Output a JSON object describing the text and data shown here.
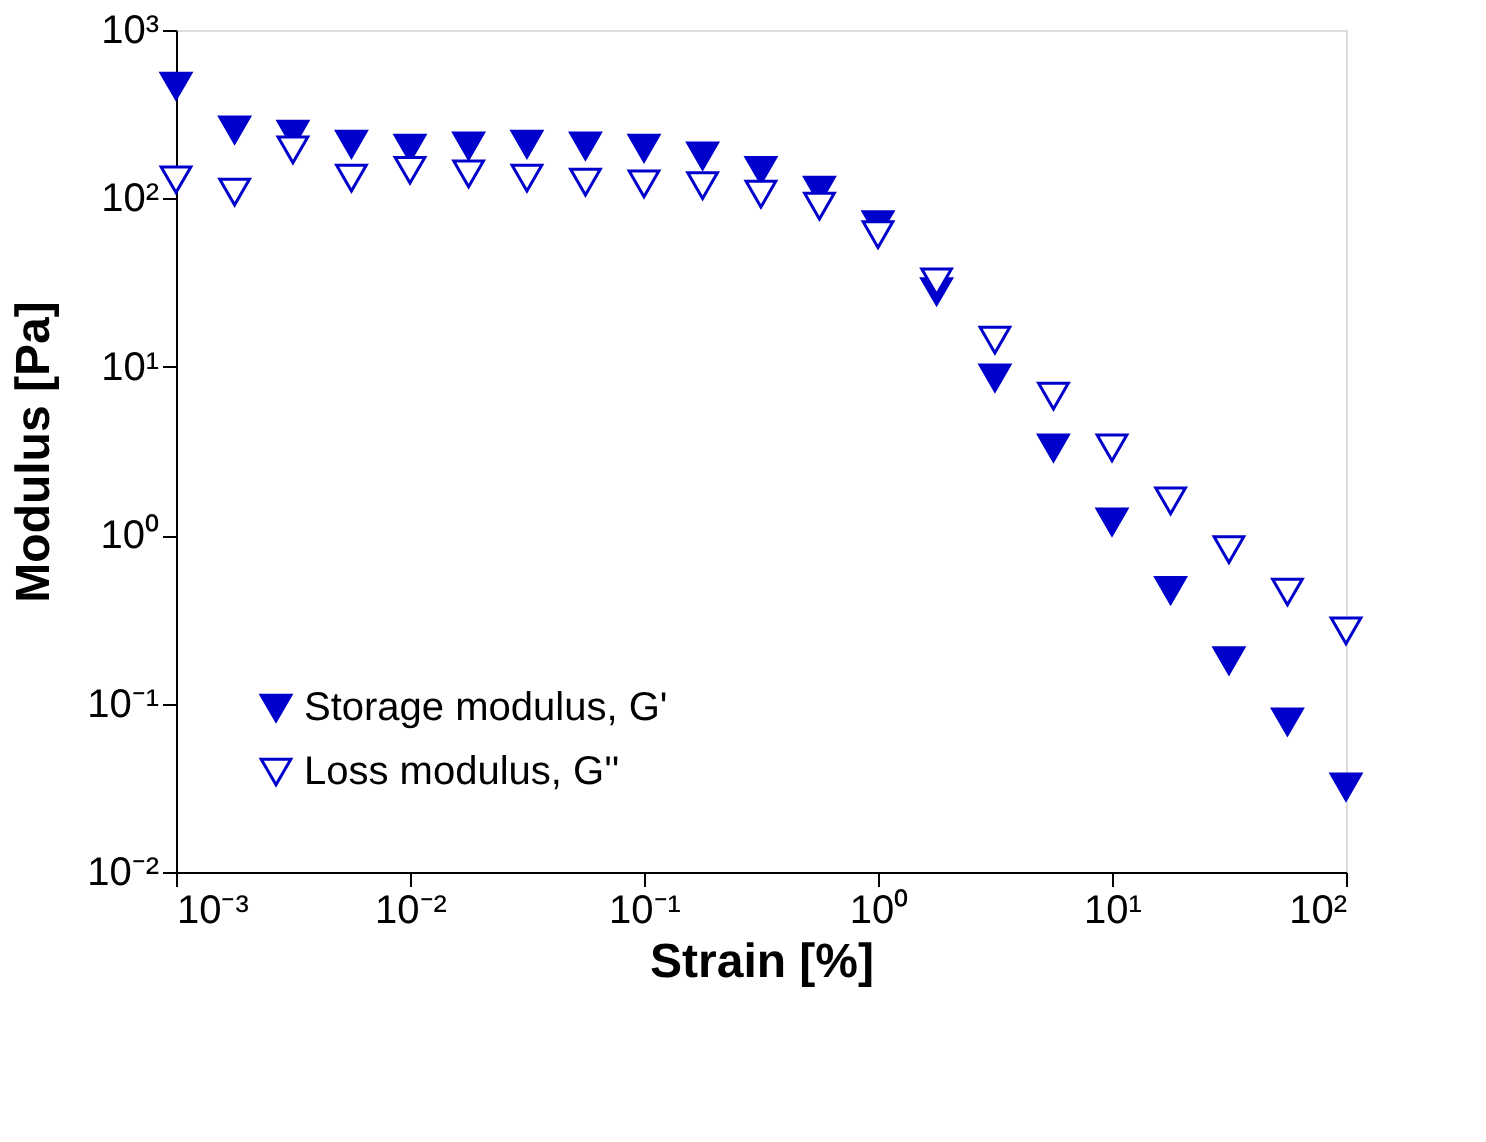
{
  "chart_data": {
    "type": "scatter",
    "xlabel": "Strain [%]",
    "ylabel": "Modulus [Pa]",
    "log": "xy",
    "marker": "triangle",
    "grid": false,
    "legend": "bottom left",
    "x": [
      0.001,
      0.00178,
      0.00316,
      0.00562,
      0.01,
      0.0178,
      0.0316,
      0.0562,
      0.1,
      0.178,
      0.316,
      0.562,
      1,
      1.78,
      3.16,
      5.62,
      10,
      17.8,
      31.6,
      56.2,
      100
    ],
    "xlim": [
      0.001,
      100
    ],
    "ylim": [
      0.01,
      1000
    ],
    "xticks": [
      {
        "value": 0.001,
        "label": "10⁻³"
      },
      {
        "value": 0.01,
        "label": "10⁻²"
      },
      {
        "value": 0.1,
        "label": "10⁻¹"
      },
      {
        "value": 1,
        "label": "10⁰"
      },
      {
        "value": 10,
        "label": "10¹"
      },
      {
        "value": 100,
        "label": "10²"
      }
    ],
    "yticks": [
      {
        "value": 0.01,
        "label": "10⁻²"
      },
      {
        "value": 0.1,
        "label": "10⁻¹"
      },
      {
        "value": 1,
        "label": "10⁰"
      },
      {
        "value": 10,
        "label": "10¹"
      },
      {
        "value": 100,
        "label": "10²"
      },
      {
        "value": 1000,
        "label": "10³"
      }
    ],
    "series": [
      {
        "name": "Storage modulus, G'",
        "color": "#0000cc",
        "values": [
          465,
          255,
          241,
          210,
          199,
          205,
          210,
          205,
          199,
          179,
          147,
          112,
          70,
          28,
          8.6,
          3.3,
          1.2,
          0.47,
          0.18,
          0.078,
          0.032
        ]
      },
      {
        "name": "Loss modulus, G''",
        "color": "#0000cc",
        "values": [
          129,
          109,
          194,
          132,
          147,
          140,
          132,
          125,
          122,
          119,
          106,
          90,
          61,
          32,
          14.4,
          6.7,
          3.3,
          1.6,
          0.82,
          0.46,
          0.27
        ]
      }
    ]
  }
}
